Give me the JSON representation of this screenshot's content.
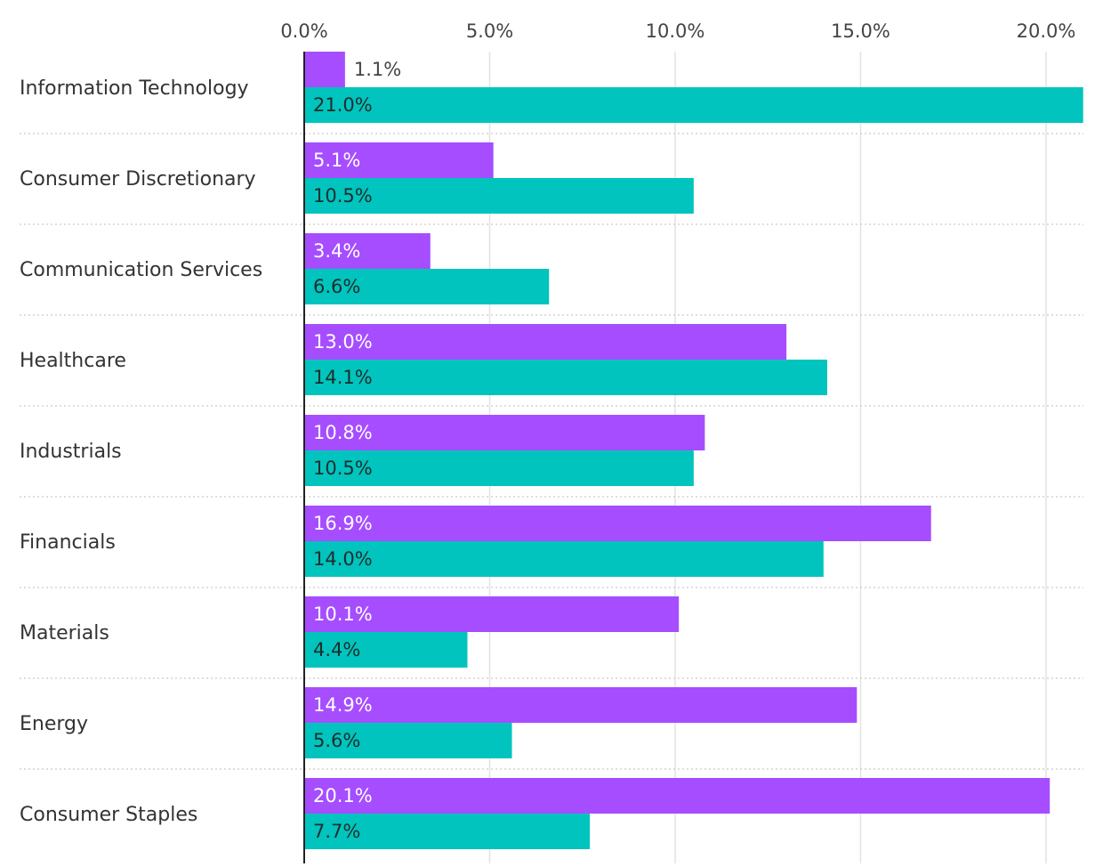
{
  "chart_data": {
    "type": "bar",
    "orientation": "horizontal",
    "title": "",
    "xlabel": "",
    "ylabel": "",
    "xlim": [
      0,
      21
    ],
    "x_ticks": [
      0,
      5,
      10,
      15,
      20
    ],
    "x_tick_labels": [
      "0.0%",
      "5.0%",
      "10.0%",
      "15.0%",
      "20.0%"
    ],
    "grid": "vertical",
    "legend": "none",
    "categories": [
      "Information Technology",
      "Consumer Discretionary",
      "Communication Services",
      "Healthcare",
      "Industrials",
      "Financials",
      "Materials",
      "Energy",
      "Consumer Staples"
    ],
    "series": [
      {
        "color": "#a64dff",
        "values": [
          1.1,
          5.1,
          3.4,
          13.0,
          10.8,
          16.9,
          10.1,
          14.9,
          20.1
        ],
        "labels": [
          "1.1%",
          "5.1%",
          "3.4%",
          "13.0%",
          "10.8%",
          "16.9%",
          "10.1%",
          "14.9%",
          "20.1%"
        ]
      },
      {
        "color": "#00c4bd",
        "values": [
          21.0,
          10.5,
          6.6,
          14.1,
          10.5,
          14.0,
          4.4,
          5.6,
          7.7
        ],
        "labels": [
          "21.0%",
          "10.5%",
          "6.6%",
          "14.1%",
          "10.5%",
          "14.0%",
          "4.4%",
          "5.6%",
          "7.7%"
        ]
      }
    ]
  }
}
